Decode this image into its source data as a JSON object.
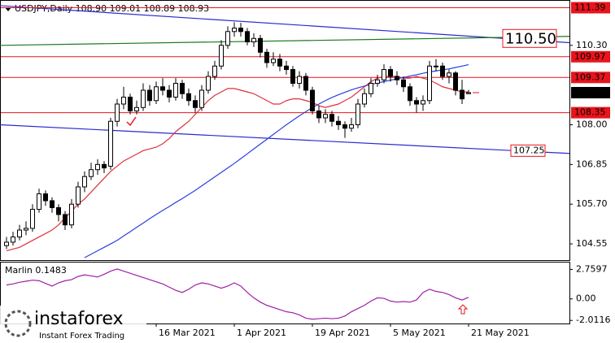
{
  "chart_data": {
    "type": "candlestick",
    "title": "USDJPY,Daily  108.90 109.01 108.89 108.93",
    "categories": [
      null,
      null,
      null,
      null,
      null,
      null,
      null,
      null,
      null,
      null,
      null,
      null,
      null,
      null,
      null,
      null,
      null,
      null,
      null,
      null,
      null,
      null,
      null,
      "16 Mar 2021",
      null,
      null,
      null,
      null,
      null,
      null,
      null,
      null,
      null,
      null,
      null,
      "1 Apr 2021",
      null,
      null,
      null,
      null,
      null,
      null,
      null,
      null,
      null,
      null,
      null,
      "19 Apr 2021",
      null,
      null,
      null,
      null,
      null,
      null,
      null,
      null,
      null,
      null,
      null,
      "5 May 2021",
      null,
      null,
      null,
      null,
      null,
      null,
      null,
      null,
      null,
      null,
      null,
      "21 May 2021"
    ],
    "open": [
      104.5,
      104.6,
      104.75,
      104.95,
      105.0,
      105.55,
      106.0,
      105.8,
      105.6,
      105.4,
      105.1,
      105.7,
      106.2,
      106.5,
      106.7,
      106.85,
      106.8,
      108.1,
      108.6,
      108.8,
      108.4,
      108.5,
      109.0,
      108.7,
      109.1,
      109.0,
      108.8,
      109.2,
      108.9,
      108.7,
      108.5,
      109.0,
      109.4,
      109.7,
      110.3,
      110.7,
      110.8,
      110.7,
      110.4,
      110.5,
      110.1,
      109.8,
      109.9,
      109.7,
      109.6,
      109.2,
      109.4,
      109.0,
      108.4,
      108.2,
      108.3,
      108.1,
      108.0,
      107.9,
      108.0,
      108.6,
      108.9,
      109.2,
      109.3,
      109.6,
      109.4,
      109.3,
      109.1,
      108.7,
      108.6,
      108.7,
      109.7,
      109.7,
      109.4,
      109.5,
      109.0,
      108.9
    ],
    "high": [
      104.75,
      104.9,
      105.1,
      105.2,
      105.7,
      106.15,
      106.1,
      105.9,
      105.7,
      105.5,
      105.85,
      106.35,
      106.65,
      106.9,
      107.0,
      106.95,
      108.2,
      108.75,
      109.1,
      108.9,
      108.7,
      109.2,
      109.15,
      109.25,
      109.35,
      109.15,
      109.35,
      109.3,
      109.05,
      108.85,
      109.15,
      109.55,
      109.85,
      110.45,
      110.85,
      110.97,
      110.95,
      110.8,
      110.65,
      110.6,
      110.2,
      110.1,
      110.05,
      109.85,
      109.7,
      109.55,
      109.5,
      109.1,
      108.55,
      108.45,
      108.4,
      108.25,
      108.1,
      108.2,
      108.75,
      109.05,
      109.35,
      109.45,
      109.75,
      109.7,
      109.55,
      109.4,
      109.2,
      108.8,
      108.85,
      109.85,
      109.9,
      109.8,
      109.6,
      109.55,
      109.3,
      109.01
    ],
    "low": [
      104.4,
      104.5,
      104.65,
      104.8,
      104.9,
      105.45,
      105.65,
      105.45,
      105.2,
      104.95,
      105.0,
      105.6,
      106.05,
      106.4,
      106.55,
      106.6,
      106.7,
      107.95,
      108.45,
      108.3,
      108.3,
      108.4,
      108.55,
      108.6,
      108.85,
      108.65,
      108.7,
      108.75,
      108.55,
      108.35,
      108.4,
      108.9,
      109.3,
      109.6,
      110.2,
      110.55,
      110.55,
      110.3,
      110.25,
      109.95,
      109.65,
      109.7,
      109.55,
      109.45,
      109.1,
      109.05,
      108.85,
      108.3,
      108.05,
      108.05,
      107.95,
      107.85,
      107.62,
      107.8,
      107.9,
      108.5,
      108.8,
      109.1,
      109.2,
      109.25,
      109.15,
      108.95,
      108.55,
      108.35,
      108.4,
      108.6,
      109.55,
      109.3,
      109.2,
      108.85,
      108.6,
      108.89
    ],
    "close": [
      104.6,
      104.75,
      104.95,
      105.0,
      105.55,
      106.0,
      105.8,
      105.6,
      105.4,
      105.1,
      105.7,
      106.2,
      106.5,
      106.7,
      106.85,
      106.75,
      108.1,
      108.6,
      108.8,
      108.4,
      108.5,
      109.0,
      108.7,
      109.1,
      109.0,
      108.8,
      109.2,
      108.9,
      108.7,
      108.5,
      109.0,
      109.4,
      109.7,
      110.3,
      110.7,
      110.8,
      110.7,
      110.4,
      110.5,
      110.1,
      109.8,
      109.9,
      109.7,
      109.6,
      109.2,
      109.4,
      109.0,
      108.4,
      108.2,
      108.3,
      108.1,
      108.0,
      107.9,
      108.0,
      108.6,
      108.9,
      109.2,
      109.3,
      109.6,
      109.4,
      109.3,
      109.1,
      108.7,
      108.6,
      108.7,
      109.7,
      109.7,
      109.4,
      109.5,
      109.0,
      108.75,
      108.93
    ],
    "series": [
      {
        "color": "#e0303a",
        "values": [
          104.35,
          104.4,
          104.45,
          104.55,
          104.65,
          104.75,
          104.85,
          104.95,
          105.1,
          105.3,
          105.5,
          105.7,
          105.85,
          106.05,
          106.25,
          106.45,
          106.65,
          106.8,
          106.95,
          107.05,
          107.15,
          107.25,
          107.3,
          107.35,
          107.45,
          107.6,
          107.8,
          107.95,
          108.1,
          108.3,
          108.5,
          108.7,
          108.85,
          108.95,
          109.05,
          109.05,
          109.0,
          108.95,
          108.9,
          108.8,
          108.7,
          108.6,
          108.6,
          108.7,
          108.75,
          108.75,
          108.7,
          108.65,
          108.55,
          108.5,
          108.55,
          108.6,
          108.7,
          108.8,
          108.95,
          109.1,
          109.25,
          109.35,
          109.4,
          109.4,
          109.4,
          109.35,
          109.35,
          109.4,
          109.35,
          109.3,
          109.2,
          109.1,
          109.05,
          109.0,
          108.95,
          108.95
        ]
      },
      {
        "color": "#2a3fe0",
        "values": [
          null,
          null,
          null,
          null,
          null,
          null,
          null,
          null,
          null,
          null,
          null,
          null,
          104.15,
          104.25,
          104.35,
          104.45,
          104.55,
          104.65,
          104.78,
          104.9,
          105.03,
          105.15,
          105.28,
          105.4,
          105.52,
          105.63,
          105.75,
          105.86,
          105.98,
          106.1,
          106.23,
          106.36,
          106.49,
          106.62,
          106.75,
          106.88,
          107.02,
          107.16,
          107.3,
          107.44,
          107.58,
          107.72,
          107.86,
          108.0,
          108.13,
          108.26,
          108.38,
          108.5,
          108.6,
          108.7,
          108.79,
          108.87,
          108.94,
          109.01,
          109.07,
          109.12,
          109.17,
          109.21,
          109.25,
          109.29,
          109.33,
          109.37,
          109.41,
          109.45,
          109.49,
          109.53,
          109.56,
          109.59,
          109.62,
          109.66,
          109.7,
          109.74
        ]
      }
    ],
    "ylim": [
      104.08,
      111.59
    ],
    "yticks": [
      104.55,
      {
        "value": 105.7,
        "label": "105.70"
      },
      106.85,
      {
        "value": 108.0,
        "label": "108.00"
      },
      {
        "value": 110.3,
        "label": "110.30"
      }
    ],
    "levels": [
      111.39,
      109.97,
      109.37,
      108.35
    ],
    "level_color": "#e8141c",
    "trendlines": [
      {
        "color": "#2a2acf",
        "from": [
          -1,
          111.45
        ],
        "to": [
          76.5,
          {
            "value": 110.5,
            "label": "110.50"
          }
        ]
      },
      {
        "color": "#2a2acf",
        "from": [
          -1,
          108.0
        ],
        "to": [
          78,
          107.25
        ]
      },
      {
        "color": "#1a7a1a",
        "from": [
          -1,
          110.3
        ],
        "to": [
          76.5,
          110.53
        ]
      }
    ],
    "indicator": {
      "title": "Marlin 0.1483",
      "color": "#a01fa8",
      "values": [
        1.3,
        1.4,
        1.55,
        1.65,
        1.75,
        1.7,
        1.45,
        1.2,
        1.5,
        1.7,
        1.8,
        2.1,
        2.25,
        2.15,
        2.05,
        2.3,
        2.6,
        2.8,
        2.6,
        2.4,
        2.2,
        2.0,
        1.8,
        1.6,
        1.4,
        1.1,
        0.8,
        0.6,
        0.9,
        1.3,
        1.5,
        1.4,
        1.2,
        1.0,
        1.2,
        1.5,
        1.2,
        0.6,
        0.1,
        -0.3,
        -0.6,
        -0.8,
        -1.0,
        -1.2,
        -1.3,
        -1.5,
        -1.8,
        -1.9,
        -1.85,
        -1.8,
        -1.85,
        -1.8,
        -1.6,
        -1.2,
        -0.9,
        -0.6,
        -0.2,
        0.1,
        0.05,
        -0.2,
        -0.3,
        -0.25,
        -0.3,
        -0.1,
        0.6,
        0.9,
        0.7,
        0.6,
        0.4,
        0.1,
        -0.1,
        0.1483
      ],
      "ylim": [
        -2.3,
        3.4
      ],
      "yticks": [
        -2.0116,
        {
          "value": 0,
          "label": "0.00"
        },
        2.7597
      ]
    }
  },
  "logo": {
    "name": "instaforex",
    "tagline": "Instant Forex Trading"
  }
}
